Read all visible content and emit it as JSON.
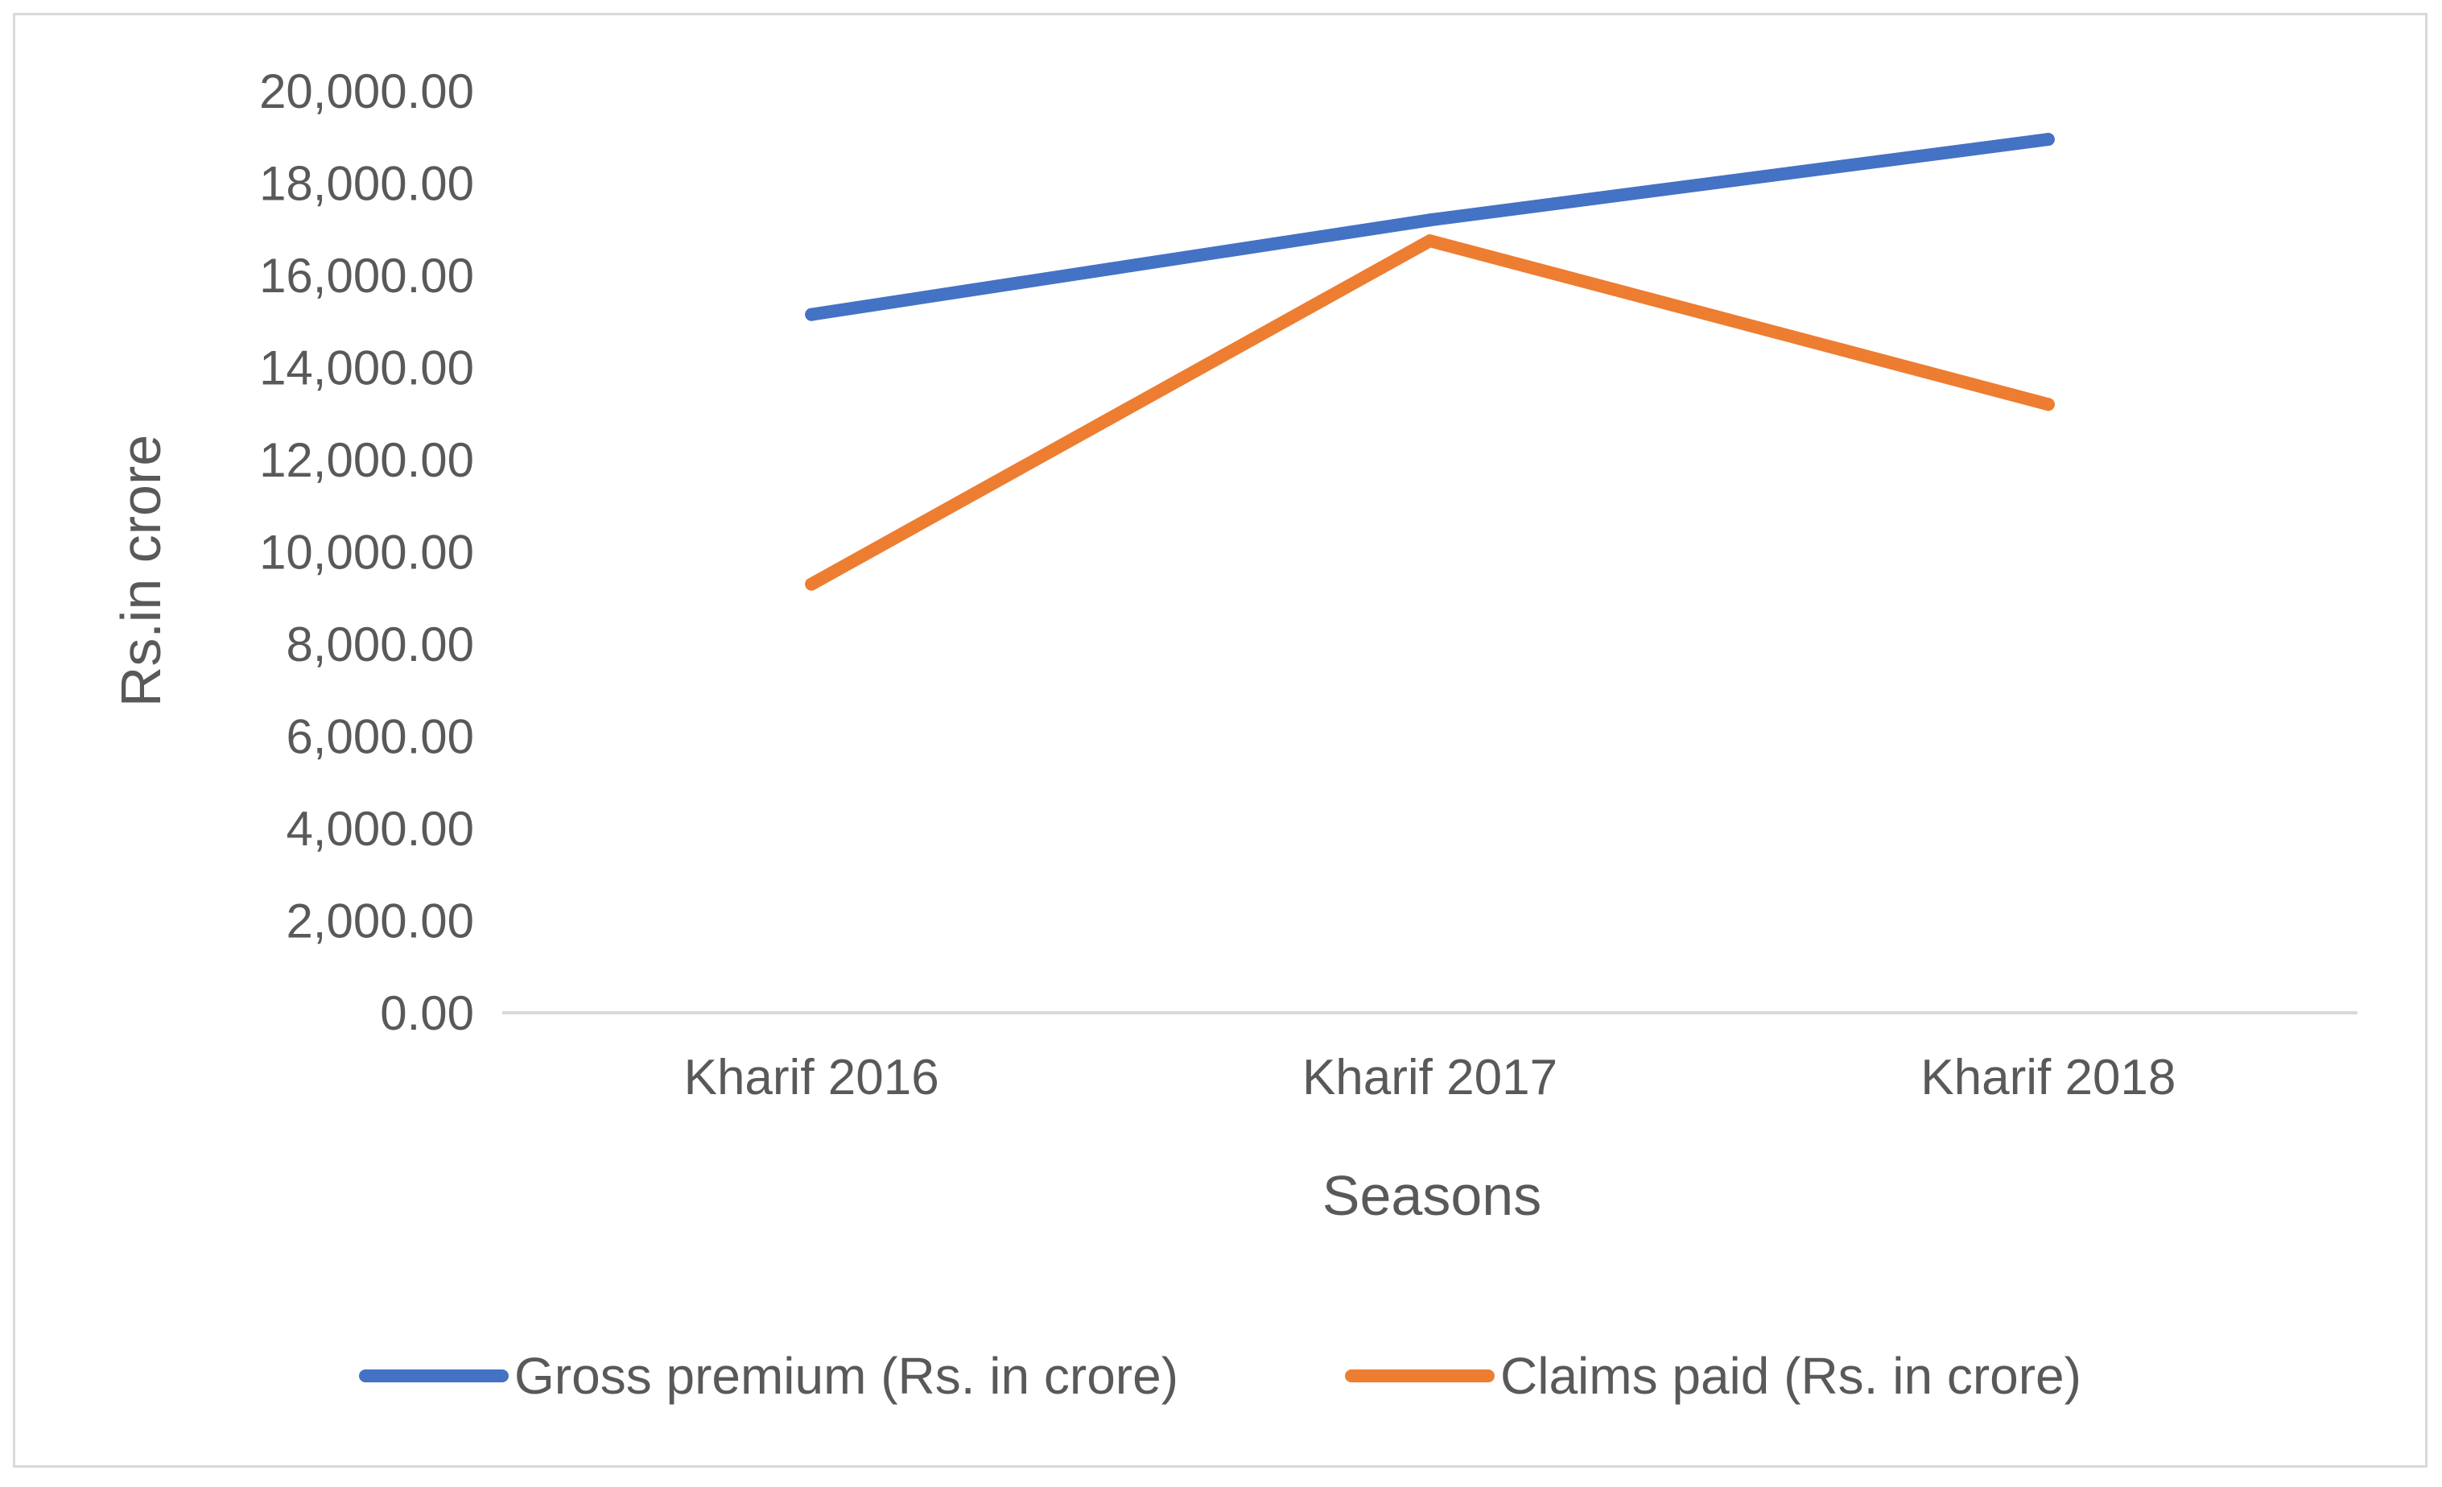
{
  "chart_data": {
    "type": "line",
    "categories": [
      "Kharif 2016",
      "Kharif 2017",
      "Kharif 2018"
    ],
    "series": [
      {
        "name": "Gross premium (Rs. in crore)",
        "values": [
          15150,
          17200,
          18950
        ],
        "color": "#4472c4"
      },
      {
        "name": "Claims paid (Rs. in crore)",
        "values": [
          9300,
          16750,
          13200
        ],
        "color": "#ed7d31"
      }
    ],
    "title": "",
    "xlabel": "Seasons",
    "ylabel": "Rs.in crore",
    "ylim": [
      0,
      20000
    ],
    "yticks": [
      "0.00",
      "2,000.00",
      "4,000.00",
      "6,000.00",
      "8,000.00",
      "10,000.00",
      "12,000.00",
      "14,000.00",
      "16,000.00",
      "18,000.00",
      "20,000.00"
    ],
    "grid": false,
    "legend_position": "bottom"
  }
}
